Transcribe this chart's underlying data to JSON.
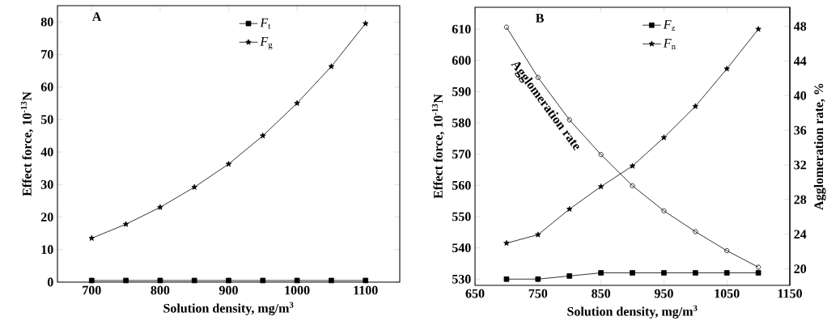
{
  "chart_data": [
    {
      "type": "line",
      "title": "A",
      "xlabel": "Solution density, mg/m$^{3}$",
      "ylabel": "Effect force, 10$^{-13}$N",
      "xlim": [
        650,
        1150
      ],
      "ylim": [
        0,
        85
      ],
      "xticks": [
        700,
        800,
        900,
        1000,
        1100
      ],
      "yticks": [
        0,
        10,
        20,
        30,
        40,
        50,
        60,
        70,
        80
      ],
      "legend": "top right",
      "x": [
        700,
        750,
        800,
        850,
        900,
        950,
        1000,
        1050,
        1100
      ],
      "series": [
        {
          "name": "*F*$_{t}$",
          "color": "#000000",
          "marker": "square",
          "values": [
            0.5,
            0.5,
            0.5,
            0.5,
            0.5,
            0.5,
            0.5,
            0.5,
            0.5
          ]
        },
        {
          "name": "*F*$_{g}$",
          "color": "#000000",
          "marker": "star",
          "values": [
            13.5,
            17.8,
            23,
            29.2,
            36.3,
            45,
            55,
            66.3,
            79.5
          ]
        }
      ]
    },
    {
      "type": "line",
      "title": "B",
      "xlabel": "Solution density, mg/m$^{3}$",
      "ylabel": "Effect force, 10$^{-13}$N",
      "y2label": "Agglomeration rate, %",
      "xlim": [
        650,
        1150
      ],
      "ylim": [
        528,
        617
      ],
      "y2lim": [
        18.1,
        50.2
      ],
      "xticks": [
        650,
        750,
        850,
        950,
        1050,
        1150
      ],
      "yticks": [
        530,
        540,
        550,
        560,
        570,
        580,
        590,
        600,
        610
      ],
      "y2ticks": [
        20,
        24,
        28,
        32,
        36,
        40,
        44,
        48
      ],
      "legend": "top right",
      "x": [
        700,
        750,
        800,
        850,
        900,
        950,
        1000,
        1050,
        1100
      ],
      "series": [
        {
          "name": "*F*$_{z}$",
          "color": "#000000",
          "marker": "square",
          "values": [
            530,
            530,
            531,
            532,
            532,
            532,
            532,
            532,
            532
          ]
        },
        {
          "name": "*F*$_{n}$",
          "color": "#000000",
          "marker": "star",
          "values": [
            541.5,
            544.2,
            552.4,
            559.6,
            566.2,
            575.3,
            585.3,
            597.3,
            610
          ]
        },
        {
          "name": "Agglomeration rate",
          "color": "#000000",
          "marker": "circle",
          "axis": "y2",
          "values": [
            47.9,
            42.1,
            37.2,
            33.2,
            29.6,
            26.7,
            24.3,
            22.1,
            20.2
          ]
        }
      ]
    }
  ]
}
